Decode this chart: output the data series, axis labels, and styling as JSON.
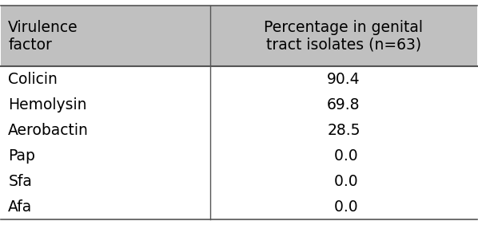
{
  "header_col1": "Virulence\nfactor",
  "header_col2": "Percentage in genital\ntract isolates (n=63)",
  "rows": [
    [
      "Colicin",
      "90.4"
    ],
    [
      "Hemolysin",
      "69.8"
    ],
    [
      "Aerobactin",
      "28.5"
    ],
    [
      "Pap",
      " 0.0"
    ],
    [
      "Sfa",
      " 0.0"
    ],
    [
      "Afa",
      " 0.0"
    ]
  ],
  "header_bg": "#c0c0c0",
  "row_bg": "#ffffff",
  "border_color": "#555555",
  "text_color": "#000000",
  "header_fontsize": 13.5,
  "row_fontsize": 13.5,
  "col_split": 0.44
}
